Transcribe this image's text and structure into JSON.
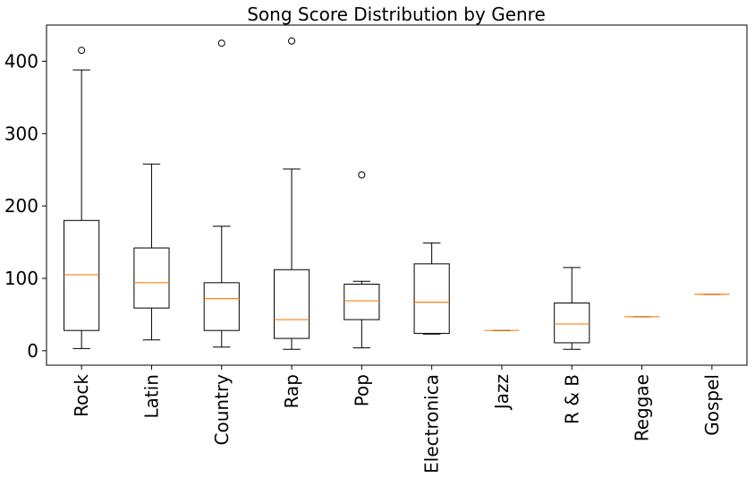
{
  "chart_data": {
    "type": "boxplot",
    "title": "Song Score Distribution by Genre",
    "xlabel": "",
    "ylabel": "",
    "ylim": [
      -20,
      450
    ],
    "yticks": [
      0,
      100,
      200,
      300,
      400
    ],
    "grid": false,
    "categories": [
      "Rock",
      "Latin",
      "Country",
      "Rap",
      "Pop",
      "Electronica",
      "Jazz",
      "R & B",
      "Reggae",
      "Gospel"
    ],
    "boxes": [
      {
        "category": "Rock",
        "whisker_low": 3,
        "q1": 28,
        "median": 105,
        "q3": 180,
        "whisker_high": 388,
        "outliers": [
          415
        ]
      },
      {
        "category": "Latin",
        "whisker_low": 15,
        "q1": 59,
        "median": 94,
        "q3": 142,
        "whisker_high": 258,
        "outliers": []
      },
      {
        "category": "Country",
        "whisker_low": 5,
        "q1": 28,
        "median": 72,
        "q3": 94,
        "whisker_high": 172,
        "outliers": [
          425
        ]
      },
      {
        "category": "Rap",
        "whisker_low": 2,
        "q1": 17,
        "median": 43,
        "q3": 112,
        "whisker_high": 251,
        "outliers": [
          428
        ]
      },
      {
        "category": "Pop",
        "whisker_low": 4,
        "q1": 43,
        "median": 69,
        "q3": 92,
        "whisker_high": 96,
        "outliers": [
          243
        ]
      },
      {
        "category": "Electronica",
        "whisker_low": 23,
        "q1": 24,
        "median": 67,
        "q3": 120,
        "whisker_high": 149,
        "outliers": []
      },
      {
        "category": "Jazz",
        "whisker_low": 28,
        "q1": 28,
        "median": 28,
        "q3": 28,
        "whisker_high": 28,
        "outliers": []
      },
      {
        "category": "R & B",
        "whisker_low": 2,
        "q1": 11,
        "median": 37,
        "q3": 66,
        "whisker_high": 115,
        "outliers": []
      },
      {
        "category": "Reggae",
        "whisker_low": 47,
        "q1": 47,
        "median": 47,
        "q3": 47,
        "whisker_high": 47,
        "outliers": []
      },
      {
        "category": "Gospel",
        "whisker_low": 78,
        "q1": 78,
        "median": 78,
        "q3": 78,
        "whisker_high": 78,
        "outliers": []
      }
    ],
    "colors": {
      "box": "#000000",
      "median": "#ff7f0e",
      "background": "#ffffff"
    }
  }
}
